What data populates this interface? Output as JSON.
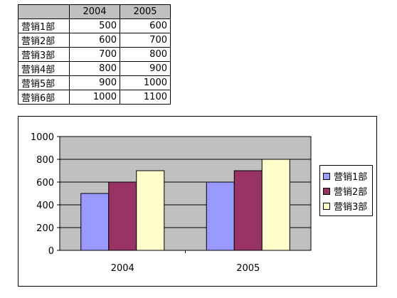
{
  "table": {
    "header": [
      "",
      "2004",
      "2005"
    ],
    "rows": [
      {
        "name": "营销1部",
        "v2004": "500",
        "v2005": "600"
      },
      {
        "name": "营销2部",
        "v2004": "600",
        "v2005": "700"
      },
      {
        "name": "营销3部",
        "v2004": "700",
        "v2005": "800"
      },
      {
        "name": "营销4部",
        "v2004": "800",
        "v2005": "900"
      },
      {
        "name": "营销5部",
        "v2004": "900",
        "v2005": "1000"
      },
      {
        "name": "营销6部",
        "v2004": "1000",
        "v2005": "1100"
      }
    ]
  },
  "chart_data": {
    "type": "bar",
    "categories": [
      "2004",
      "2005"
    ],
    "series": [
      {
        "name": "营销1部",
        "values": [
          500,
          600
        ],
        "color": "#9999ff"
      },
      {
        "name": "营销2部",
        "values": [
          600,
          700
        ],
        "color": "#993366"
      },
      {
        "name": "营销3部",
        "values": [
          700,
          800
        ],
        "color": "#ffffcc"
      }
    ],
    "ylim": [
      0,
      1000
    ],
    "yticks": [
      "0",
      "200",
      "400",
      "600",
      "800",
      "1000"
    ],
    "grid": true,
    "plot_background": "#c0c0c0",
    "legend_position": "right"
  }
}
